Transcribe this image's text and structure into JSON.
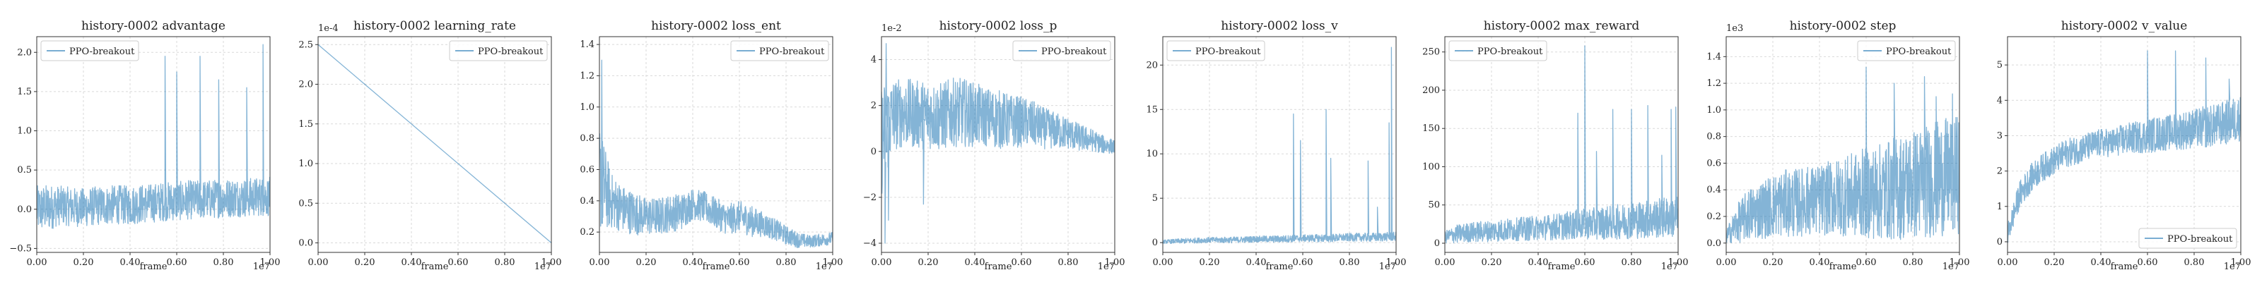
{
  "chart_data": [
    {
      "type": "line",
      "title": "history-0002 advantage",
      "xlabel": "frame",
      "x_tick_labels": [
        "0.00",
        "0.20",
        "0.40",
        "0.60",
        "0.80",
        "1.00"
      ],
      "x_ticks": [
        0,
        0.2,
        0.4,
        0.6,
        0.8,
        1.0
      ],
      "x_scale_label": "1e7",
      "xlim": [
        0,
        1.0
      ],
      "y_scale_label": "",
      "y_tick_labels": [
        "−0.5",
        "0.0",
        "0.5",
        "1.0",
        "1.5",
        "2.0"
      ],
      "y_ticks": [
        -0.5,
        0,
        0.5,
        1.0,
        1.5,
        2.0
      ],
      "ylim": [
        -0.55,
        2.2
      ],
      "legend": "top-left",
      "grid": true,
      "series": [
        {
          "name": "PPO-breakout",
          "color": "#1f77b4",
          "x": [
            0,
            0.05,
            0.1,
            0.15,
            0.2,
            0.25,
            0.3,
            0.35,
            0.4,
            0.45,
            0.5,
            0.55,
            0.6,
            0.65,
            0.7,
            0.75,
            0.8,
            0.85,
            0.9,
            0.95,
            1.0
          ],
          "y": [
            0.0,
            0.02,
            0.05,
            0.03,
            0.02,
            0.04,
            0.05,
            0.06,
            0.05,
            0.07,
            0.08,
            0.1,
            0.1,
            0.12,
            0.12,
            0.13,
            0.14,
            0.15,
            0.15,
            0.16,
            0.16
          ],
          "band": [
            0.3,
            0.3,
            0.25,
            0.25,
            0.25,
            0.25,
            0.25,
            0.25,
            0.25,
            0.25,
            0.25,
            0.25,
            0.25,
            0.25,
            0.25,
            0.25,
            0.25,
            0.25,
            0.25,
            0.25,
            0.25
          ],
          "spikes": [
            [
              0.55,
              1.95
            ],
            [
              0.6,
              1.75
            ],
            [
              0.7,
              1.95
            ],
            [
              0.78,
              1.65
            ],
            [
              0.9,
              1.55
            ],
            [
              0.97,
              2.1
            ]
          ]
        }
      ]
    },
    {
      "type": "line",
      "title": "history-0002 learning_rate",
      "xlabel": "frame",
      "x_tick_labels": [
        "0.00",
        "0.20",
        "0.40",
        "0.60",
        "0.80",
        "1.00"
      ],
      "x_ticks": [
        0,
        0.2,
        0.4,
        0.6,
        0.8,
        1.0
      ],
      "x_scale_label": "1e7",
      "xlim": [
        0,
        1.0
      ],
      "y_scale_label": "1e-4",
      "y_tick_labels": [
        "0.0",
        "0.5",
        "1.0",
        "1.5",
        "2.0",
        "2.5"
      ],
      "y_ticks": [
        0,
        0.5,
        1.0,
        1.5,
        2.0,
        2.5
      ],
      "ylim": [
        -0.12,
        2.6
      ],
      "legend": "top-right",
      "grid": true,
      "series": [
        {
          "name": "PPO-breakout",
          "color": "#1f77b4",
          "x": [
            0,
            1.0
          ],
          "y": [
            2.5,
            0.0
          ],
          "band": [
            0,
            0
          ],
          "spikes": []
        }
      ]
    },
    {
      "type": "line",
      "title": "history-0002 loss_ent",
      "xlabel": "frame",
      "x_tick_labels": [
        "0.00",
        "0.20",
        "0.40",
        "0.60",
        "0.80",
        "1.00"
      ],
      "x_ticks": [
        0,
        0.2,
        0.4,
        0.6,
        0.8,
        1.0
      ],
      "x_scale_label": "1e7",
      "xlim": [
        0,
        1.0
      ],
      "y_scale_label": "",
      "y_tick_labels": [
        "0.2",
        "0.4",
        "0.6",
        "0.8",
        "1.0",
        "1.2",
        "1.4"
      ],
      "y_ticks": [
        0.2,
        0.4,
        0.6,
        0.8,
        1.0,
        1.2,
        1.4
      ],
      "ylim": [
        0.07,
        1.45
      ],
      "legend": "top-right",
      "grid": true,
      "series": [
        {
          "name": "PPO-breakout",
          "color": "#1f77b4",
          "x": [
            0,
            0.05,
            0.1,
            0.15,
            0.2,
            0.25,
            0.3,
            0.35,
            0.4,
            0.45,
            0.5,
            0.55,
            0.6,
            0.65,
            0.7,
            0.75,
            0.8,
            0.85,
            0.9,
            0.95,
            1.0
          ],
          "y": [
            0.55,
            0.4,
            0.35,
            0.32,
            0.3,
            0.3,
            0.32,
            0.33,
            0.38,
            0.36,
            0.32,
            0.28,
            0.3,
            0.27,
            0.25,
            0.22,
            0.18,
            0.15,
            0.14,
            0.15,
            0.16
          ],
          "band": [
            0.35,
            0.18,
            0.15,
            0.14,
            0.12,
            0.12,
            0.12,
            0.12,
            0.1,
            0.1,
            0.1,
            0.1,
            0.1,
            0.1,
            0.08,
            0.07,
            0.06,
            0.05,
            0.04,
            0.04,
            0.04
          ],
          "spikes": [
            [
              0.01,
              1.3
            ]
          ]
        }
      ]
    },
    {
      "type": "line",
      "title": "history-0002 loss_p",
      "xlabel": "frame",
      "x_tick_labels": [
        "0.00",
        "0.20",
        "0.40",
        "0.60",
        "0.80",
        "1.00"
      ],
      "x_ticks": [
        0,
        0.2,
        0.4,
        0.6,
        0.8,
        1.0
      ],
      "x_scale_label": "1e7",
      "xlim": [
        0,
        1.0
      ],
      "y_scale_label": "1e-2",
      "y_tick_labels": [
        "−4",
        "−2",
        "0",
        "2",
        "4"
      ],
      "y_ticks": [
        -4,
        -2,
        0,
        2,
        4
      ],
      "ylim": [
        -4.4,
        5.0
      ],
      "legend": "top-right",
      "grid": true,
      "series": [
        {
          "name": "PPO-breakout",
          "color": "#1f77b4",
          "x": [
            0,
            0.05,
            0.1,
            0.15,
            0.2,
            0.25,
            0.3,
            0.35,
            0.4,
            0.45,
            0.5,
            0.55,
            0.6,
            0.65,
            0.7,
            0.75,
            0.8,
            0.85,
            0.9,
            0.95,
            1.0
          ],
          "y": [
            0.5,
            1.6,
            1.7,
            1.6,
            1.6,
            1.5,
            1.7,
            1.7,
            1.6,
            1.5,
            1.4,
            1.3,
            1.3,
            1.2,
            1.0,
            0.9,
            0.8,
            0.6,
            0.5,
            0.3,
            0.2
          ],
          "band": [
            2.5,
            1.6,
            1.5,
            1.5,
            1.5,
            1.5,
            1.5,
            1.5,
            1.4,
            1.3,
            1.3,
            1.2,
            1.1,
            1.0,
            0.9,
            0.8,
            0.7,
            0.6,
            0.5,
            0.4,
            0.3
          ],
          "spikes": [
            [
              0.015,
              -4.0
            ],
            [
              0.02,
              4.7
            ],
            [
              0.03,
              -3.0
            ],
            [
              0.18,
              -2.3
            ]
          ]
        }
      ]
    },
    {
      "type": "line",
      "title": "history-0002 loss_v",
      "xlabel": "frame",
      "x_tick_labels": [
        "0.00",
        "0.20",
        "0.40",
        "0.60",
        "0.80",
        "1.00"
      ],
      "x_ticks": [
        0,
        0.2,
        0.4,
        0.6,
        0.8,
        1.0
      ],
      "x_scale_label": "1e7",
      "xlim": [
        0,
        1.0
      ],
      "y_scale_label": "",
      "y_tick_labels": [
        "0",
        "5",
        "10",
        "15",
        "20"
      ],
      "y_ticks": [
        0,
        5,
        10,
        15,
        20
      ],
      "ylim": [
        -1.1,
        23.2
      ],
      "legend": "top-left",
      "grid": true,
      "series": [
        {
          "name": "PPO-breakout",
          "color": "#1f77b4",
          "x": [
            0,
            0.1,
            0.2,
            0.3,
            0.4,
            0.5,
            0.6,
            0.7,
            0.8,
            0.9,
            1.0
          ],
          "y": [
            0.1,
            0.2,
            0.3,
            0.3,
            0.4,
            0.4,
            0.5,
            0.5,
            0.6,
            0.6,
            0.7
          ],
          "band": [
            0.2,
            0.3,
            0.3,
            0.35,
            0.35,
            0.4,
            0.4,
            0.45,
            0.45,
            0.5,
            0.5
          ],
          "spikes": [
            [
              0.56,
              14.5
            ],
            [
              0.59,
              11.5
            ],
            [
              0.7,
              15.0
            ],
            [
              0.72,
              9.5
            ],
            [
              0.88,
              9.2
            ],
            [
              0.92,
              4.0
            ],
            [
              0.97,
              13.5
            ],
            [
              0.98,
              22.0
            ]
          ]
        }
      ]
    },
    {
      "type": "line",
      "title": "history-0002 max_reward",
      "xlabel": "frame",
      "x_tick_labels": [
        "0.00",
        "0.20",
        "0.40",
        "0.60",
        "0.80",
        "1.00"
      ],
      "x_ticks": [
        0,
        0.2,
        0.4,
        0.6,
        0.8,
        1.0
      ],
      "x_scale_label": "1e7",
      "xlim": [
        0,
        1.0
      ],
      "y_scale_label": "",
      "y_tick_labels": [
        "0",
        "50",
        "100",
        "150",
        "200",
        "250"
      ],
      "y_ticks": [
        0,
        50,
        100,
        150,
        200,
        250
      ],
      "ylim": [
        -12,
        270
      ],
      "legend": "top-left",
      "grid": true,
      "series": [
        {
          "name": "PPO-breakout",
          "color": "#1f77b4",
          "x": [
            0,
            0.05,
            0.1,
            0.15,
            0.2,
            0.25,
            0.3,
            0.35,
            0.4,
            0.45,
            0.5,
            0.55,
            0.6,
            0.65,
            0.7,
            0.75,
            0.8,
            0.85,
            0.9,
            0.95,
            1.0
          ],
          "y": [
            8,
            12,
            14,
            15,
            16,
            17,
            18,
            19,
            20,
            21,
            22,
            24,
            25,
            26,
            27,
            28,
            30,
            31,
            32,
            34,
            35
          ],
          "band": [
            8,
            12,
            13,
            14,
            14,
            15,
            15,
            16,
            16,
            17,
            18,
            19,
            20,
            21,
            22,
            23,
            24,
            25,
            26,
            27,
            28
          ],
          "spikes": [
            [
              0.57,
              170
            ],
            [
              0.6,
              258
            ],
            [
              0.65,
              120
            ],
            [
              0.72,
              175
            ],
            [
              0.8,
              175
            ],
            [
              0.87,
              180
            ],
            [
              0.93,
              115
            ],
            [
              0.97,
              175
            ],
            [
              0.99,
              178
            ]
          ]
        }
      ]
    },
    {
      "type": "line",
      "title": "history-0002 step",
      "xlabel": "frame",
      "x_tick_labels": [
        "0.00",
        "0.20",
        "0.40",
        "0.60",
        "0.80",
        "1.00"
      ],
      "x_ticks": [
        0,
        0.2,
        0.4,
        0.6,
        0.8,
        1.0
      ],
      "x_scale_label": "1e7",
      "xlim": [
        0,
        1.0
      ],
      "y_scale_label": "1e3",
      "y_tick_labels": [
        "0.0",
        "0.2",
        "0.4",
        "0.6",
        "0.8",
        "1.0",
        "1.2",
        "1.4"
      ],
      "y_ticks": [
        0,
        0.2,
        0.4,
        0.6,
        0.8,
        1.0,
        1.2,
        1.4
      ],
      "ylim": [
        -0.07,
        1.55
      ],
      "legend": "top-right",
      "grid": true,
      "series": [
        {
          "name": "PPO-breakout",
          "color": "#1f77b4",
          "x": [
            0,
            0.05,
            0.1,
            0.15,
            0.2,
            0.25,
            0.3,
            0.35,
            0.4,
            0.45,
            0.5,
            0.55,
            0.6,
            0.65,
            0.7,
            0.75,
            0.8,
            0.85,
            0.9,
            0.95,
            1.0
          ],
          "y": [
            0.05,
            0.15,
            0.22,
            0.25,
            0.28,
            0.3,
            0.3,
            0.32,
            0.32,
            0.34,
            0.35,
            0.36,
            0.38,
            0.38,
            0.4,
            0.42,
            0.44,
            0.46,
            0.48,
            0.5,
            0.52
          ],
          "band": [
            0.05,
            0.15,
            0.2,
            0.22,
            0.24,
            0.25,
            0.26,
            0.26,
            0.27,
            0.28,
            0.3,
            0.32,
            0.34,
            0.36,
            0.38,
            0.4,
            0.42,
            0.42,
            0.44,
            0.44,
            0.45
          ],
          "spikes": [
            [
              0.6,
              1.32
            ],
            [
              0.72,
              1.2
            ],
            [
              0.85,
              1.25
            ],
            [
              0.9,
              1.1
            ],
            [
              0.97,
              1.12
            ]
          ]
        }
      ]
    },
    {
      "type": "line",
      "title": "history-0002 v_value",
      "xlabel": "frame",
      "x_tick_labels": [
        "0.00",
        "0.20",
        "0.40",
        "0.60",
        "0.80",
        "1.00"
      ],
      "x_ticks": [
        0,
        0.2,
        0.4,
        0.6,
        0.8,
        1.0
      ],
      "x_scale_label": "1e7",
      "xlim": [
        0,
        1.0
      ],
      "y_scale_label": "",
      "y_tick_labels": [
        "0",
        "1",
        "2",
        "3",
        "4",
        "5"
      ],
      "y_ticks": [
        0,
        1,
        2,
        3,
        4,
        5
      ],
      "ylim": [
        -0.3,
        5.8
      ],
      "legend": "bottom-right",
      "grid": true,
      "series": [
        {
          "name": "PPO-breakout",
          "color": "#1f77b4",
          "x": [
            0,
            0.05,
            0.1,
            0.15,
            0.2,
            0.25,
            0.3,
            0.35,
            0.4,
            0.45,
            0.5,
            0.55,
            0.6,
            0.65,
            0.7,
            0.75,
            0.8,
            0.85,
            0.9,
            0.95,
            1.0
          ],
          "y": [
            0.2,
            1.3,
            1.8,
            2.1,
            2.3,
            2.5,
            2.6,
            2.7,
            2.8,
            2.8,
            2.9,
            2.95,
            3.0,
            3.05,
            3.1,
            3.15,
            3.2,
            3.25,
            3.3,
            3.4,
            3.5
          ],
          "band": [
            0.3,
            0.4,
            0.4,
            0.4,
            0.4,
            0.4,
            0.4,
            0.4,
            0.4,
            0.4,
            0.45,
            0.45,
            0.5,
            0.5,
            0.5,
            0.55,
            0.55,
            0.6,
            0.6,
            0.65,
            0.65
          ],
          "spikes": [
            [
              0.6,
              5.4
            ],
            [
              0.72,
              5.4
            ],
            [
              0.85,
              5.2
            ],
            [
              0.95,
              4.6
            ]
          ]
        }
      ]
    }
  ]
}
